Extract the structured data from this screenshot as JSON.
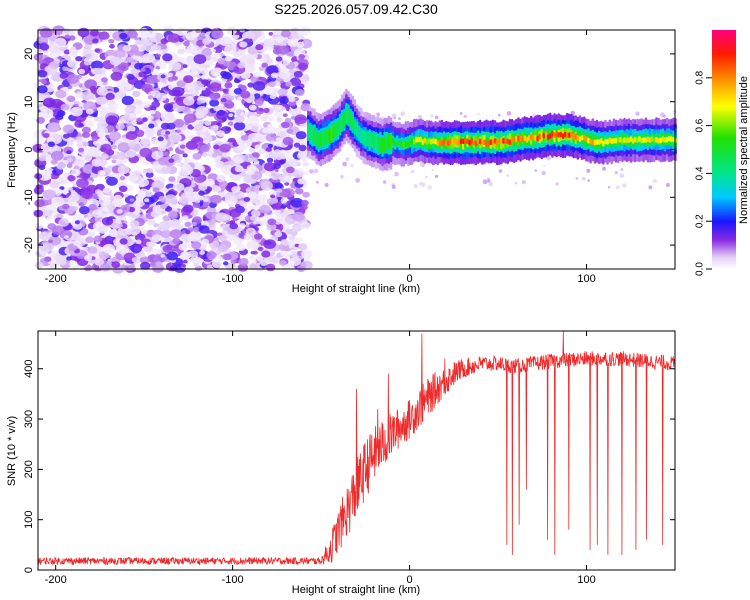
{
  "title": "S225.2026.057.09.42.C30",
  "chart_data": [
    {
      "type": "heatmap",
      "xlabel": "Height of straight line (km)",
      "ylabel": "Frequency (Hz)",
      "xlim": [
        -210,
        150
      ],
      "ylim": [
        -25,
        25
      ],
      "xticks": [
        -200,
        -100,
        0,
        100
      ],
      "xtick_labels": [
        "-200",
        "-100",
        "0",
        "100"
      ],
      "yticks": [
        -20,
        -10,
        0,
        10,
        20
      ],
      "ytick_labels": [
        "-20",
        "-10",
        "0",
        "10",
        "20"
      ],
      "colorbar": {
        "label": "Normalized spectral amplitude",
        "range": [
          0,
          1
        ],
        "ticks": [
          0.0,
          0.2,
          0.4,
          0.6,
          0.8
        ],
        "tick_labels": [
          "0.0",
          "0.2",
          "0.4",
          "0.6",
          "0.8"
        ]
      },
      "noise_region_x": [
        -210,
        -58
      ],
      "signal_track": {
        "x": [
          -58,
          -52,
          -46,
          -40,
          -36,
          -32,
          -28,
          -24,
          -20,
          -16,
          -12,
          -8,
          -4,
          0,
          5,
          10,
          15,
          20,
          30,
          40,
          50,
          60,
          70,
          80,
          90,
          95,
          100,
          105,
          110,
          120,
          130,
          140,
          150
        ],
        "freq_hz": [
          4,
          2,
          3,
          5,
          7.5,
          5,
          3,
          2,
          1.5,
          1,
          1.5,
          1.5,
          1,
          1.5,
          2,
          1.5,
          1.5,
          1.5,
          1.5,
          1.5,
          1.5,
          2,
          2.5,
          3,
          3,
          2.5,
          2,
          1.5,
          1.5,
          2,
          2,
          2,
          2
        ],
        "amplitude": [
          0.45,
          0.5,
          0.55,
          0.5,
          0.5,
          0.45,
          0.4,
          0.45,
          0.45,
          0.5,
          0.55,
          0.55,
          0.55,
          0.6,
          0.7,
          0.7,
          0.75,
          0.85,
          0.9,
          0.9,
          0.9,
          0.85,
          0.85,
          0.9,
          0.9,
          0.8,
          0.75,
          0.8,
          0.7,
          0.7,
          0.7,
          0.7,
          0.7
        ]
      }
    },
    {
      "type": "line",
      "xlabel": "Height of straight line (km)",
      "ylabel": "SNR (10 * v/v)",
      "xlim": [
        -210,
        150
      ],
      "ylim": [
        0,
        475
      ],
      "xticks": [
        -200,
        -100,
        0,
        100
      ],
      "xtick_labels": [
        "-200",
        "-100",
        "0",
        "100"
      ],
      "yticks": [
        0,
        100,
        200,
        300,
        400
      ],
      "ytick_labels": [
        "0",
        "100",
        "200",
        "300",
        "400"
      ],
      "color": "#ee2a2a",
      "envelope": {
        "x": [
          -210,
          -50,
          -45,
          -40,
          -35,
          -30,
          -25,
          -20,
          -15,
          -10,
          -5,
          0,
          5,
          10,
          15,
          20,
          25,
          30,
          35,
          40,
          50,
          60,
          70,
          80,
          100,
          120,
          150
        ],
        "mean": [
          18,
          18,
          40,
          80,
          120,
          160,
          200,
          230,
          250,
          270,
          285,
          300,
          320,
          340,
          360,
          375,
          390,
          400,
          405,
          410,
          410,
          405,
          410,
          415,
          420,
          420,
          410
        ],
        "spread": [
          7,
          7,
          30,
          45,
          55,
          60,
          60,
          55,
          50,
          45,
          40,
          40,
          40,
          40,
          35,
          30,
          25,
          20,
          18,
          16,
          15,
          15,
          15,
          15,
          15,
          15,
          15
        ]
      },
      "dropouts": [
        {
          "x": 55,
          "y": 50
        },
        {
          "x": 58,
          "y": 30
        },
        {
          "x": 62,
          "y": 90
        },
        {
          "x": 66,
          "y": 160
        },
        {
          "x": 78,
          "y": 60
        },
        {
          "x": 82,
          "y": 30
        },
        {
          "x": 90,
          "y": 80
        },
        {
          "x": 102,
          "y": 40
        },
        {
          "x": 106,
          "y": 50
        },
        {
          "x": 112,
          "y": 30
        },
        {
          "x": 120,
          "y": 30
        },
        {
          "x": 128,
          "y": 40
        },
        {
          "x": 134,
          "y": 60
        },
        {
          "x": 143,
          "y": 50
        }
      ],
      "spikes": [
        {
          "x": -30,
          "y": 360
        },
        {
          "x": -18,
          "y": 320
        },
        {
          "x": -12,
          "y": 390
        },
        {
          "x": 7,
          "y": 470
        },
        {
          "x": 20,
          "y": 420
        },
        {
          "x": 87,
          "y": 475
        }
      ]
    }
  ]
}
